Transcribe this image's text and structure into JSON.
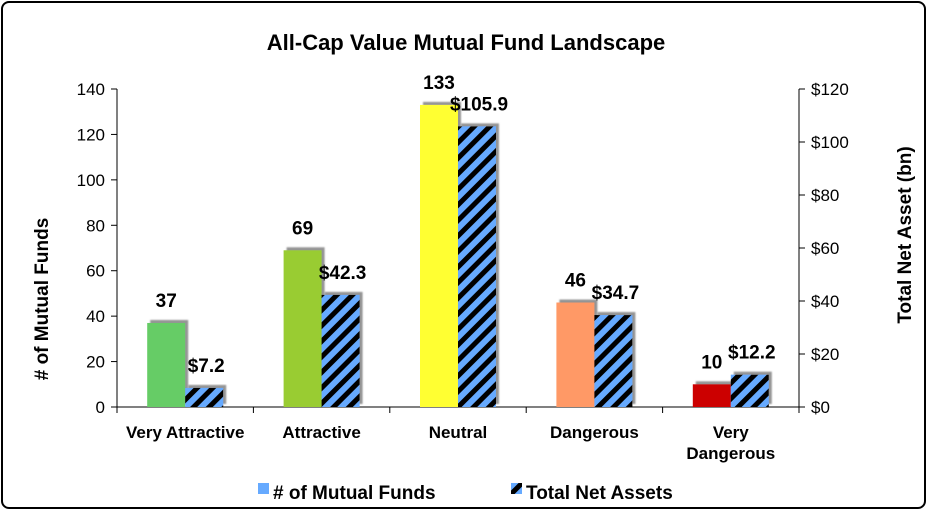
{
  "chart_data": {
    "type": "bar",
    "title": "All-Cap Value Mutual Fund Landscape",
    "categories": [
      "Very Attractive",
      "Attractive",
      "Neutral",
      "Dangerous",
      "Very Dangerous"
    ],
    "category_lines": [
      [
        "Very Attractive"
      ],
      [
        "Attractive"
      ],
      [
        "Neutral"
      ],
      [
        "Dangerous"
      ],
      [
        "Very",
        "Dangerous"
      ]
    ],
    "series": [
      {
        "name": "# of Mutual Funds",
        "axis": "left",
        "values": [
          37,
          69,
          133,
          46,
          10
        ],
        "labels": [
          "37",
          "69",
          "133",
          "46",
          "10"
        ],
        "colors": [
          "#66cc66",
          "#99cc33",
          "#ffff33",
          "#ff9966",
          "#cc0000"
        ]
      },
      {
        "name": "Total Net Assets",
        "axis": "right",
        "values": [
          7.2,
          42.3,
          105.9,
          34.7,
          12.2
        ],
        "labels": [
          "$7.2",
          "$42.3",
          "$105.9",
          "$34.7",
          "$12.2"
        ],
        "fill": "#66aaff",
        "hatch": "#000000"
      }
    ],
    "ylabel": "# of Mutual Funds",
    "ylim": [
      0,
      140
    ],
    "yticks": [
      0,
      20,
      40,
      60,
      80,
      100,
      120,
      140
    ],
    "ytick_labels": [
      "0",
      "20",
      "40",
      "60",
      "80",
      "100",
      "120",
      "140"
    ],
    "y2label": "Total Net Asset (bn)",
    "y2lim": [
      0,
      120
    ],
    "y2ticks": [
      0,
      20,
      40,
      60,
      80,
      100,
      120
    ],
    "y2tick_labels": [
      "$0",
      "$20",
      "$40",
      "$60",
      "$80",
      "$100",
      "$120"
    ],
    "legend": {
      "position": "bottom",
      "entries": [
        "# of Mutual Funds",
        "Total Net Assets"
      ]
    },
    "grid": false
  }
}
